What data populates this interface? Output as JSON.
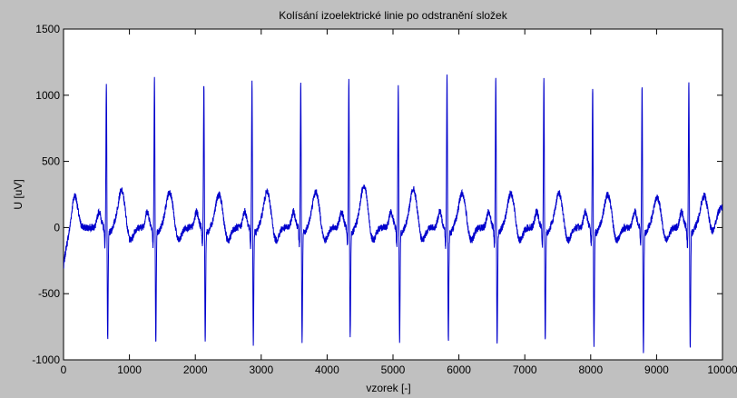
{
  "chart_data": {
    "type": "line",
    "title": "Kolísání izoelektrické linie po odstranění složek",
    "xlabel": "vzorek [-]",
    "ylabel": "U [uV]",
    "xlim": [
      0,
      10000
    ],
    "ylim": [
      -1000,
      1500
    ],
    "xticks": [
      0,
      1000,
      2000,
      3000,
      4000,
      5000,
      6000,
      7000,
      8000,
      9000,
      10000
    ],
    "yticks": [
      -1000,
      -500,
      0,
      500,
      1000,
      1500
    ],
    "grid": false,
    "series_color": "#0000cc",
    "background_color": "#c0c0c0",
    "plot_area_color": "#ffffff",
    "series": [
      {
        "beat_samples": [
          650,
          1380,
          2130,
          2860,
          3600,
          4330,
          5080,
          5820,
          6560,
          7290,
          8030,
          8780,
          9490
        ],
        "r_peak_values": [
          1110,
          1150,
          1100,
          1110,
          1100,
          1130,
          1090,
          1160,
          1170,
          1150,
          1080,
          1080,
          1100
        ],
        "s_trough_values": [
          -850,
          -850,
          -840,
          -870,
          -860,
          -820,
          -870,
          -850,
          -880,
          -860,
          -870,
          -940,
          -900
        ],
        "t_wave_values": [
          280,
          270,
          250,
          270,
          270,
          320,
          290,
          260,
          260,
          260,
          250,
          230,
          230
        ],
        "baseline_value": 0,
        "start_value": -310,
        "end_value": 250
      }
    ]
  }
}
